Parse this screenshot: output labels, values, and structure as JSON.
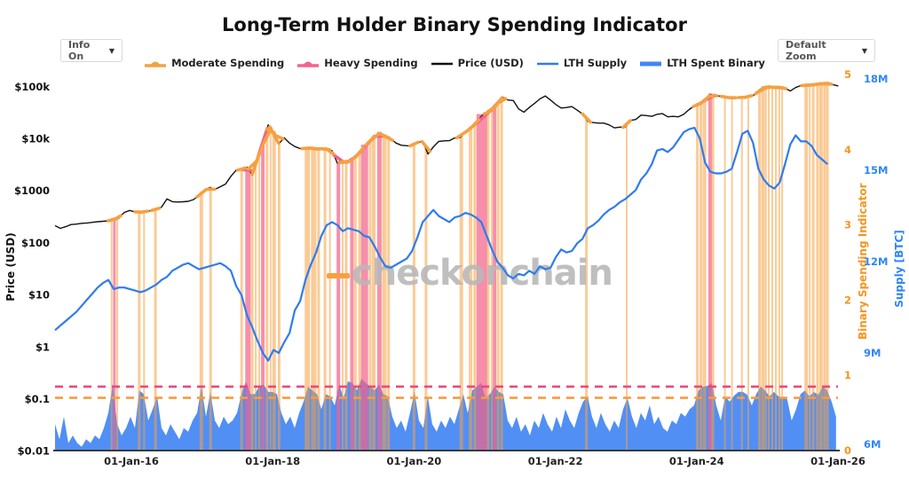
{
  "title": "Long-Term Holder Binary Spending Indicator",
  "controls": {
    "info_dropdown": "Info On",
    "zoom_dropdown": "Default Zoom",
    "caret": "▼"
  },
  "watermark": {
    "text": "checkonchain",
    "text_color": "#b8b8b8",
    "dash_color": "#F5A142"
  },
  "legend": [
    {
      "label": "Moderate Spending",
      "color": "#F5A142",
      "type": "band"
    },
    {
      "label": "Heavy Spending",
      "color": "#F2638C",
      "type": "band"
    },
    {
      "label": "Price (USD)",
      "color": "#111111",
      "type": "line"
    },
    {
      "label": "LTH Supply",
      "color": "#2E7CEE",
      "type": "line"
    },
    {
      "label": "LTH Spent Binary",
      "color": "#4285F4",
      "type": "thickline"
    }
  ],
  "axes": {
    "x": {
      "tick_labels": [
        "01-Jan-16",
        "01-Jan-18",
        "01-Jan-20",
        "01-Jan-22",
        "01-Jan-24",
        "01-Jan-26"
      ],
      "tick_years": [
        2016,
        2018,
        2020,
        2022,
        2024,
        2026
      ]
    },
    "price": {
      "title": "Price (USD)",
      "color": "#111111",
      "tick_labels": [
        "$100k",
        "$10k",
        "$1000",
        "$100",
        "$10",
        "$1",
        "$0.1",
        "$0.01"
      ],
      "tick_values": [
        100000,
        10000,
        1000,
        100,
        10,
        1,
        0.1,
        0.01
      ]
    },
    "indicator": {
      "title": "Binary Spending Indicator",
      "color": "#F7941E",
      "tick_values": [
        0,
        1,
        2,
        3,
        4,
        5
      ]
    },
    "supply": {
      "title": "Supply [BTC]",
      "color": "#2E86F5",
      "tick_labels": [
        "6M",
        "9M",
        "12M",
        "15M",
        "18M"
      ],
      "tick_values": [
        6,
        9,
        12,
        15,
        18
      ]
    }
  },
  "chart_data": {
    "type": "line",
    "x_range_years": [
      2014.92,
      2026.0
    ],
    "band_colors": {
      "moderate": "rgba(245,161,66,0.55)",
      "heavy": "rgba(242,99,140,0.72)",
      "moderate_solid": "#F5A142",
      "heavy_solid": "#F2638C"
    },
    "thresholds": [
      {
        "name": "heavy",
        "value": 0.85,
        "color": "#F2447A"
      },
      {
        "name": "moderate",
        "value": 0.7,
        "color": "#F89C3E"
      }
    ],
    "series": [
      {
        "name": "Price (USD)",
        "axis": "price",
        "color": "#111111",
        "width": 1.4,
        "start_year": 2014.92,
        "step_years": 0.0754,
        "values": [
          215,
          190,
          205,
          225,
          230,
          238,
          242,
          248,
          255,
          260,
          266,
          278,
          310,
          385,
          420,
          395,
          385,
          400,
          418,
          432,
          490,
          700,
          620,
          610,
          618,
          630,
          680,
          820,
          1010,
          1150,
          1070,
          1200,
          1350,
          1900,
          2500,
          2500,
          2850,
          2050,
          4400,
          7500,
          18500,
          13800,
          8000,
          10500,
          8300,
          7100,
          6500,
          6450,
          6800,
          6200,
          6450,
          6400,
          5900,
          3400,
          3650,
          3550,
          4000,
          5200,
          7000,
          8700,
          11300,
          12800,
          11000,
          10000,
          8300,
          7500,
          7350,
          7300,
          8500,
          8900,
          5100,
          7000,
          8900,
          9150,
          9200,
          10400,
          10500,
          13300,
          16000,
          19500,
          27000,
          33000,
          34500,
          47000,
          63500,
          55500,
          54500,
          37500,
          32500,
          40000,
          47800,
          58500,
          66500,
          55500,
          45500,
          39000,
          40000,
          41500,
          35500,
          30000,
          21500,
          20500,
          20000,
          20000,
          18500,
          16200,
          16800,
          16600,
          22500,
          23500,
          28500,
          28000,
          27000,
          29500,
          30500,
          26500,
          27000,
          26500,
          29500,
          36500,
          43000,
          46500,
          54500,
          70000,
          67500,
          65500,
          63500,
          59000,
          62500,
          60500,
          64500,
          68000,
          79000,
          96500,
          99500,
          96000,
          97500,
          93500,
          83000,
          96500,
          105500,
          107000,
          107500,
          111500,
          114500,
          116500,
          110000,
          103500
        ]
      },
      {
        "name": "LTH Supply",
        "axis": "supply",
        "color": "#2E7CEE",
        "width": 2.2,
        "start_year": 2014.92,
        "step_years": 0.0754,
        "values": [
          9.75,
          9.9,
          10.05,
          10.2,
          10.35,
          10.55,
          10.75,
          10.95,
          11.15,
          11.3,
          11.4,
          11.1,
          11.15,
          11.15,
          11.1,
          11.05,
          11.0,
          11.05,
          11.15,
          11.25,
          11.4,
          11.5,
          11.7,
          11.8,
          11.9,
          11.95,
          11.85,
          11.75,
          11.8,
          11.85,
          11.9,
          11.95,
          11.85,
          11.7,
          11.2,
          10.9,
          10.25,
          9.85,
          9.4,
          9.0,
          8.75,
          9.1,
          9.0,
          9.35,
          9.65,
          10.4,
          10.7,
          11.4,
          11.9,
          12.3,
          12.85,
          13.2,
          13.3,
          13.2,
          13.0,
          13.1,
          13.05,
          13.0,
          12.85,
          12.8,
          12.5,
          12.15,
          11.85,
          11.8,
          11.9,
          12.0,
          12.1,
          12.35,
          12.8,
          13.3,
          13.5,
          13.7,
          13.5,
          13.4,
          13.3,
          13.45,
          13.5,
          13.6,
          13.55,
          13.45,
          13.3,
          12.85,
          12.4,
          12.0,
          11.8,
          11.55,
          11.45,
          11.6,
          11.55,
          11.7,
          11.6,
          11.85,
          11.75,
          11.8,
          12.15,
          12.4,
          12.3,
          12.35,
          12.6,
          12.75,
          13.1,
          13.2,
          13.35,
          13.55,
          13.7,
          13.8,
          13.95,
          14.05,
          14.2,
          14.35,
          14.7,
          14.9,
          15.2,
          15.65,
          15.7,
          15.6,
          15.75,
          16.0,
          16.25,
          16.35,
          16.4,
          16.05,
          15.25,
          14.95,
          14.9,
          14.9,
          14.95,
          15.05,
          15.6,
          16.2,
          16.3,
          15.9,
          15.05,
          14.7,
          14.5,
          14.4,
          14.6,
          15.2,
          15.85,
          16.15,
          15.95,
          15.95,
          15.8,
          15.5,
          15.35,
          15.2
        ]
      },
      {
        "name": "LTH Spent Binary",
        "axis": "indicator",
        "color": "#4285F4",
        "fill_opacity": 0.92,
        "start_year": 2014.92,
        "step_years": 0.0628,
        "values": [
          0.35,
          0.15,
          0.45,
          0.1,
          0.2,
          0.1,
          0.05,
          0.15,
          0.1,
          0.2,
          0.15,
          0.3,
          0.5,
          0.88,
          0.35,
          0.2,
          0.3,
          0.45,
          0.3,
          0.8,
          0.75,
          0.4,
          0.55,
          0.72,
          0.3,
          0.2,
          0.35,
          0.25,
          0.15,
          0.3,
          0.25,
          0.4,
          0.5,
          0.85,
          0.45,
          0.78,
          0.4,
          0.3,
          0.45,
          0.35,
          0.4,
          0.5,
          0.75,
          0.92,
          0.75,
          0.75,
          0.85,
          0.88,
          0.78,
          0.78,
          0.75,
          0.5,
          0.35,
          0.45,
          0.3,
          0.5,
          0.65,
          0.85,
          0.8,
          0.75,
          0.55,
          0.75,
          0.72,
          0.6,
          0.88,
          0.7,
          0.92,
          0.9,
          0.8,
          0.95,
          0.9,
          0.85,
          0.8,
          0.88,
          0.75,
          0.72,
          0.45,
          0.3,
          0.4,
          0.25,
          0.5,
          0.78,
          0.4,
          0.3,
          0.72,
          0.35,
          0.25,
          0.4,
          0.3,
          0.45,
          0.35,
          0.55,
          0.75,
          0.5,
          0.8,
          0.85,
          0.9,
          0.7,
          0.75,
          0.85,
          0.78,
          0.75,
          0.4,
          0.3,
          0.45,
          0.25,
          0.35,
          0.2,
          0.4,
          0.3,
          0.5,
          0.35,
          0.25,
          0.45,
          0.3,
          0.55,
          0.4,
          0.3,
          0.5,
          0.65,
          0.72,
          0.45,
          0.3,
          0.5,
          0.35,
          0.25,
          0.4,
          0.3,
          0.55,
          0.7,
          0.45,
          0.3,
          0.5,
          0.4,
          0.6,
          0.35,
          0.45,
          0.3,
          0.25,
          0.4,
          0.35,
          0.5,
          0.45,
          0.55,
          0.6,
          0.8,
          0.85,
          0.86,
          0.9,
          0.6,
          0.4,
          0.72,
          0.65,
          0.73,
          0.78,
          0.78,
          0.74,
          0.6,
          0.75,
          0.85,
          0.8,
          0.72,
          0.78,
          0.72,
          0.7,
          0.68,
          0.4,
          0.55,
          0.75,
          0.8,
          0.72,
          0.78,
          0.74,
          0.85,
          0.8,
          0.65,
          0.45
        ]
      }
    ],
    "bands": [
      {
        "year": 2015.76,
        "w": 3,
        "type": "heavy"
      },
      {
        "year": 2017.65,
        "w": 6,
        "type": "heavy"
      },
      {
        "year": 2017.86,
        "w": 4,
        "type": "heavy"
      },
      {
        "year": 2018.93,
        "w": 4,
        "type": "heavy"
      },
      {
        "year": 2019.12,
        "w": 4,
        "type": "heavy"
      },
      {
        "year": 2019.3,
        "w": 8,
        "type": "heavy"
      },
      {
        "year": 2019.51,
        "w": 5,
        "type": "heavy"
      },
      {
        "year": 2020.96,
        "w": 12,
        "type": "heavy"
      },
      {
        "year": 2021.14,
        "w": 4,
        "type": "heavy"
      },
      {
        "year": 2024.19,
        "w": 4,
        "type": "heavy"
      },
      {
        "year": 2015.72,
        "w": 2,
        "type": "moderate"
      },
      {
        "year": 2015.8,
        "w": 2,
        "type": "moderate"
      },
      {
        "year": 2016.11,
        "w": 3,
        "type": "moderate"
      },
      {
        "year": 2016.18,
        "w": 2,
        "type": "moderate"
      },
      {
        "year": 2016.34,
        "w": 3,
        "type": "moderate"
      },
      {
        "year": 2016.99,
        "w": 4,
        "type": "moderate"
      },
      {
        "year": 2017.12,
        "w": 3,
        "type": "moderate"
      },
      {
        "year": 2017.56,
        "w": 3,
        "type": "moderate"
      },
      {
        "year": 2017.71,
        "w": 3,
        "type": "moderate"
      },
      {
        "year": 2017.76,
        "w": 2,
        "type": "moderate"
      },
      {
        "year": 2017.81,
        "w": 2,
        "type": "moderate"
      },
      {
        "year": 2017.92,
        "w": 3,
        "type": "moderate"
      },
      {
        "year": 2017.97,
        "w": 2,
        "type": "moderate"
      },
      {
        "year": 2018.02,
        "w": 4,
        "type": "moderate"
      },
      {
        "year": 2018.09,
        "w": 3,
        "type": "moderate"
      },
      {
        "year": 2018.49,
        "w": 6,
        "type": "moderate"
      },
      {
        "year": 2018.58,
        "w": 6,
        "type": "moderate"
      },
      {
        "year": 2018.65,
        "w": 3,
        "type": "moderate"
      },
      {
        "year": 2018.74,
        "w": 3,
        "type": "moderate"
      },
      {
        "year": 2018.81,
        "w": 2,
        "type": "moderate"
      },
      {
        "year": 2018.99,
        "w": 2,
        "type": "moderate"
      },
      {
        "year": 2019.04,
        "w": 3,
        "type": "moderate"
      },
      {
        "year": 2019.17,
        "w": 3,
        "type": "moderate"
      },
      {
        "year": 2019.23,
        "w": 3,
        "type": "moderate"
      },
      {
        "year": 2019.38,
        "w": 3,
        "type": "moderate"
      },
      {
        "year": 2019.43,
        "w": 4,
        "type": "moderate"
      },
      {
        "year": 2019.58,
        "w": 5,
        "type": "moderate"
      },
      {
        "year": 2019.64,
        "w": 3,
        "type": "moderate"
      },
      {
        "year": 2020.0,
        "w": 3,
        "type": "moderate"
      },
      {
        "year": 2020.17,
        "w": 3,
        "type": "moderate"
      },
      {
        "year": 2020.67,
        "w": 4,
        "type": "moderate"
      },
      {
        "year": 2020.8,
        "w": 4,
        "type": "moderate"
      },
      {
        "year": 2020.86,
        "w": 3,
        "type": "moderate"
      },
      {
        "year": 2021.05,
        "w": 3,
        "type": "moderate"
      },
      {
        "year": 2021.1,
        "w": 2,
        "type": "moderate"
      },
      {
        "year": 2021.19,
        "w": 3,
        "type": "moderate"
      },
      {
        "year": 2021.24,
        "w": 3,
        "type": "moderate"
      },
      {
        "year": 2022.44,
        "w": 3,
        "type": "moderate"
      },
      {
        "year": 2023.01,
        "w": 2,
        "type": "moderate"
      },
      {
        "year": 2024.01,
        "w": 3,
        "type": "moderate"
      },
      {
        "year": 2024.06,
        "w": 3,
        "type": "moderate"
      },
      {
        "year": 2024.11,
        "w": 4,
        "type": "moderate"
      },
      {
        "year": 2024.23,
        "w": 3,
        "type": "moderate"
      },
      {
        "year": 2024.4,
        "w": 2,
        "type": "moderate"
      },
      {
        "year": 2024.5,
        "w": 2,
        "type": "moderate"
      },
      {
        "year": 2024.64,
        "w": 2,
        "type": "moderate"
      },
      {
        "year": 2024.73,
        "w": 2,
        "type": "moderate"
      },
      {
        "year": 2024.89,
        "w": 3,
        "type": "moderate"
      },
      {
        "year": 2024.94,
        "w": 4,
        "type": "moderate"
      },
      {
        "year": 2024.98,
        "w": 2,
        "type": "moderate"
      },
      {
        "year": 2025.02,
        "w": 2,
        "type": "moderate"
      },
      {
        "year": 2025.07,
        "w": 2,
        "type": "moderate"
      },
      {
        "year": 2025.12,
        "w": 2,
        "type": "moderate"
      },
      {
        "year": 2025.17,
        "w": 2,
        "type": "moderate"
      },
      {
        "year": 2025.21,
        "w": 2,
        "type": "moderate"
      },
      {
        "year": 2025.55,
        "w": 4,
        "type": "moderate"
      },
      {
        "year": 2025.6,
        "w": 2,
        "type": "moderate"
      },
      {
        "year": 2025.65,
        "w": 3,
        "type": "moderate"
      },
      {
        "year": 2025.71,
        "w": 3,
        "type": "moderate"
      },
      {
        "year": 2025.76,
        "w": 4,
        "type": "moderate"
      },
      {
        "year": 2025.81,
        "w": 3,
        "type": "moderate"
      },
      {
        "year": 2025.85,
        "w": 3,
        "type": "moderate"
      }
    ]
  }
}
